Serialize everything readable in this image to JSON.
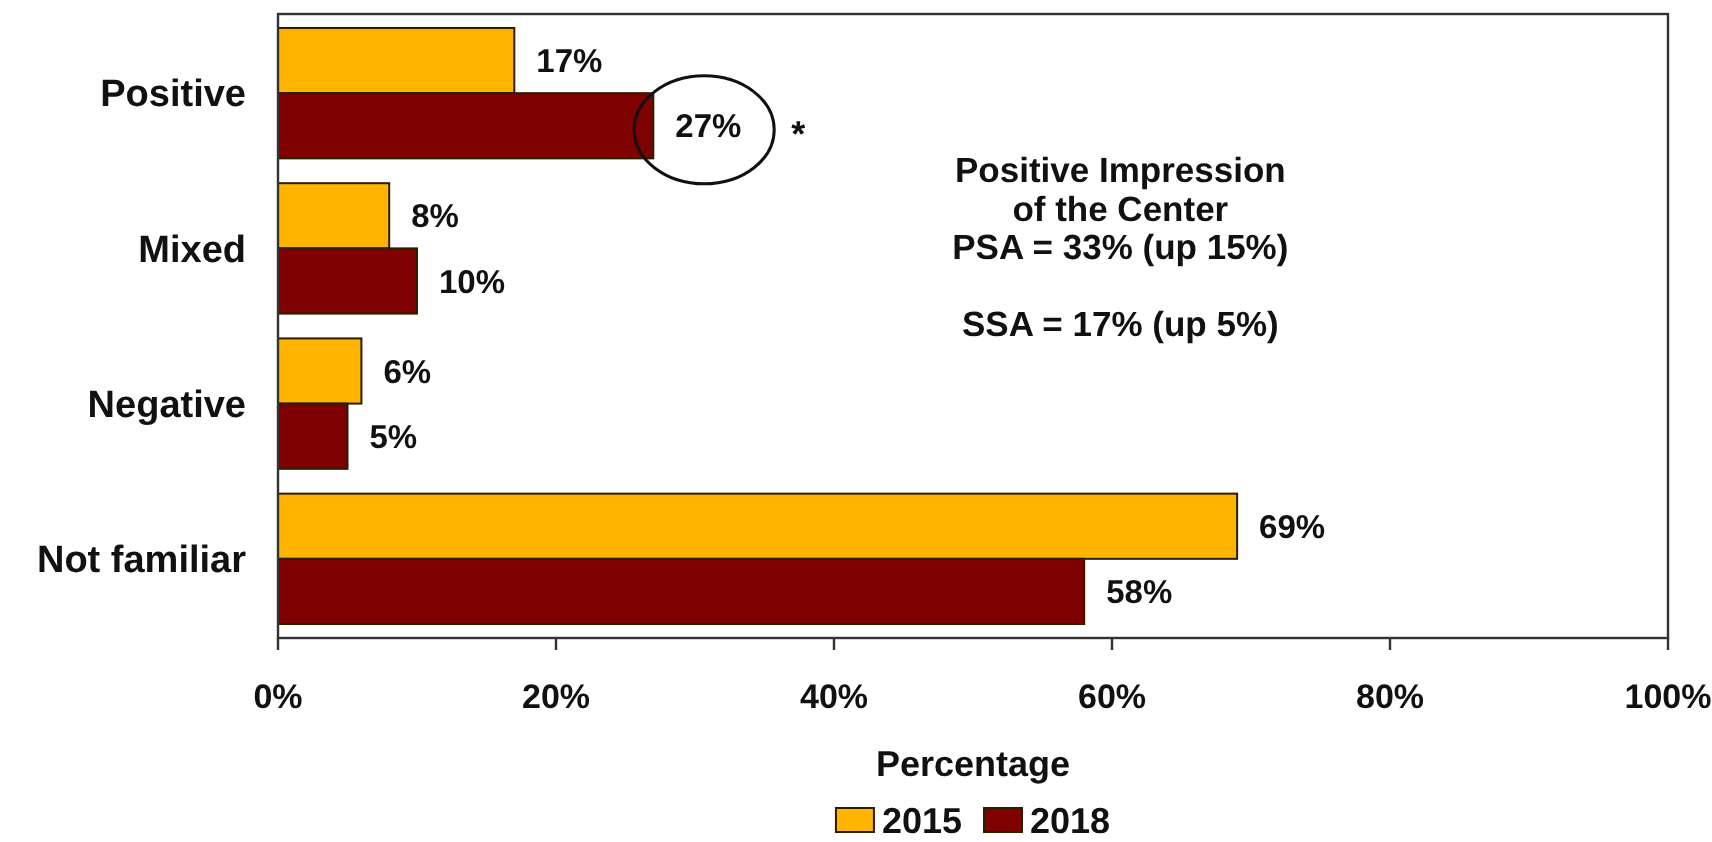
{
  "chart_data": {
    "type": "bar",
    "orientation": "horizontal",
    "categories": [
      "Positive",
      "Mixed",
      "Negative",
      "Not familiar"
    ],
    "series": [
      {
        "name": "2015",
        "color": "#ffb400",
        "values": [
          17,
          8,
          6,
          69
        ],
        "value_labels": [
          "17%",
          "8%",
          "6%",
          "69%"
        ]
      },
      {
        "name": "2018",
        "color": "#7f0000",
        "values": [
          27,
          10,
          5,
          58
        ],
        "value_labels": [
          "27%",
          "10%",
          "5%",
          "58%"
        ]
      }
    ],
    "xlim": [
      0,
      100
    ],
    "xticks": [
      {
        "value": 0,
        "label": "0%"
      },
      {
        "value": 20,
        "label": "20%"
      },
      {
        "value": 40,
        "label": "40%"
      },
      {
        "value": 60,
        "label": "60%"
      },
      {
        "value": 80,
        "label": "80%"
      },
      {
        "value": 100,
        "label": "100%"
      }
    ],
    "xlabel": "Percentage",
    "annotations": [
      "Positive Impression\nof the Center\nPSA = 33% (up 15%)\n\nSSA = 17% (up 5%)",
      "*"
    ],
    "legend": "bottom",
    "grid": false
  }
}
